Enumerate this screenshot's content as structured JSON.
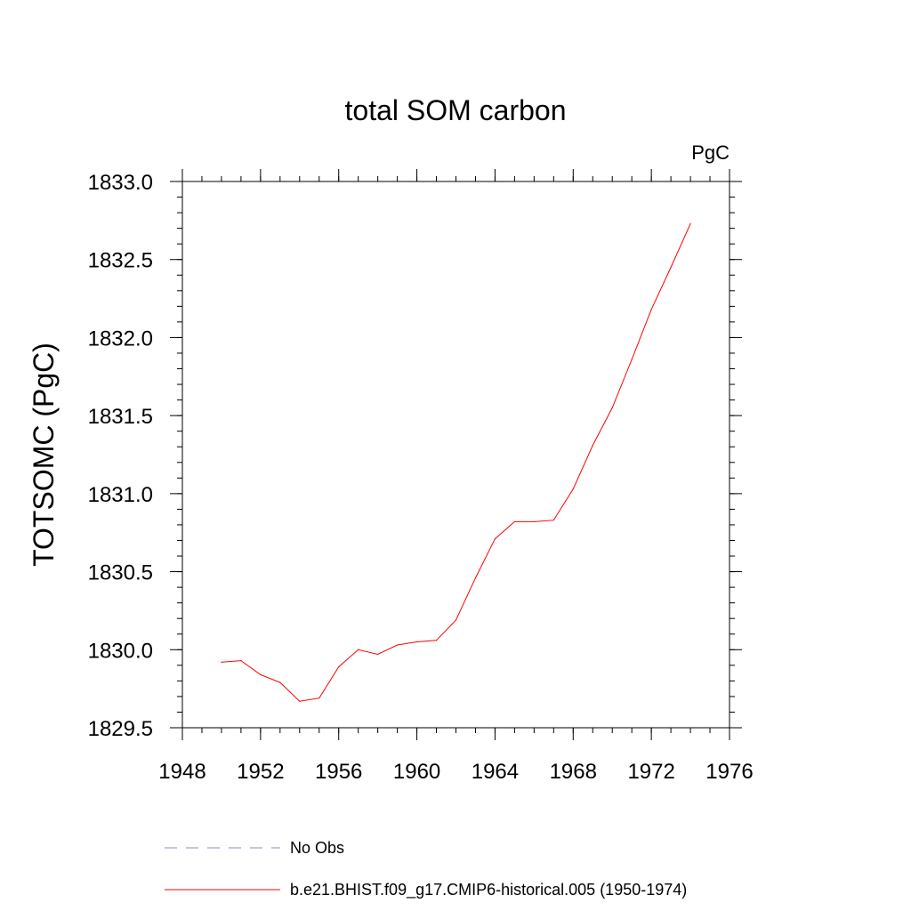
{
  "chart_data": {
    "type": "line",
    "title": "total SOM carbon",
    "units_label": "PgC",
    "xlabel": "",
    "ylabel": "TOTSOMC  (PgC)",
    "xlim": [
      1948,
      1976
    ],
    "ylim": [
      1829.5,
      1833.0
    ],
    "x_ticks": [
      1948,
      1952,
      1956,
      1960,
      1964,
      1968,
      1972,
      1976
    ],
    "y_ticks": [
      "1829.5",
      "1830.0",
      "1830.5",
      "1831.0",
      "1831.5",
      "1832.0",
      "1832.5",
      "1833.0"
    ],
    "x_minor_step": 1,
    "y_minor_step": 0.1,
    "grid": false,
    "series": [
      {
        "name": "b.e21.BHIST.f09_g17.CMIP6-historical.005 (1950-1974)",
        "color": "#ff0000",
        "dash": "solid",
        "x": [
          1950,
          1951,
          1952,
          1953,
          1954,
          1955,
          1956,
          1957,
          1958,
          1959,
          1960,
          1961,
          1962,
          1963,
          1964,
          1965,
          1966,
          1967,
          1968,
          1969,
          1970,
          1971,
          1972,
          1973,
          1974
        ],
        "values": [
          1829.92,
          1829.93,
          1829.84,
          1829.79,
          1829.67,
          1829.69,
          1829.89,
          1830.0,
          1829.97,
          1830.03,
          1830.05,
          1830.06,
          1830.19,
          1830.46,
          1830.71,
          1830.82,
          1830.82,
          1830.83,
          1831.03,
          1831.31,
          1831.55,
          1831.86,
          1832.18,
          1832.45,
          1832.73
        ]
      },
      {
        "name": "No Obs",
        "color": "#8888cc",
        "dash": "dashed",
        "x": [],
        "values": []
      }
    ],
    "legend": {
      "placement": "bottom",
      "entries": [
        {
          "label": "No Obs",
          "color": "#8888cc",
          "dash": "dashed"
        },
        {
          "label": "b.e21.BHIST.f09_g17.CMIP6-historical.005 (1950-1974)",
          "color": "#ff0000",
          "dash": "solid"
        }
      ]
    }
  }
}
